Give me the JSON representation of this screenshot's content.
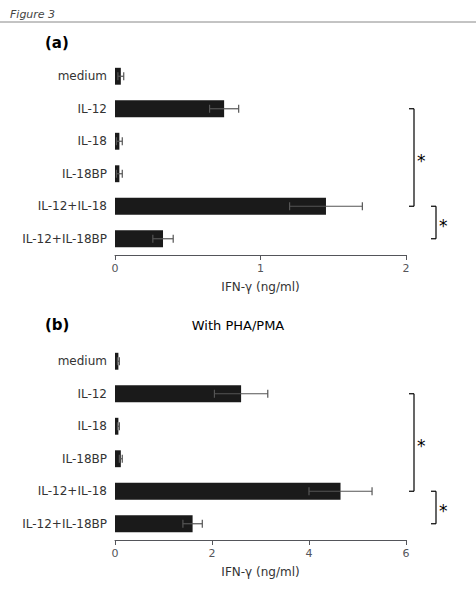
{
  "title": "Figure 3",
  "chart_data": [
    {
      "type": "bar",
      "orientation": "horizontal",
      "title": "(a)",
      "categories": [
        "medium",
        "IL-12",
        "IL-18",
        "IL-18BP",
        "IL-12+IL-18",
        "IL-12+IL-18BP"
      ],
      "values": [
        0.04,
        0.75,
        0.03,
        0.03,
        1.45,
        0.33
      ],
      "errors": [
        0.02,
        0.1,
        0.02,
        0.02,
        0.25,
        0.07
      ],
      "xlim": [
        0,
        2.0
      ],
      "xticks": [
        0,
        1,
        2
      ],
      "xlabel": "IFN-γ (ng/ml)",
      "color": "#1a1a1a",
      "grid": false,
      "annotations": [
        {
          "text": "*",
          "from": "IL-12",
          "to": "IL-12+IL-18"
        },
        {
          "text": "*",
          "from": "IL-12+IL-18",
          "to": "IL-12+IL-18BP"
        }
      ]
    },
    {
      "type": "bar",
      "orientation": "horizontal",
      "title": "(b)",
      "subtitle": "With PHA/PMA",
      "categories": [
        "medium",
        "IL-12",
        "IL-18",
        "IL-18BP",
        "IL-12+IL-18",
        "IL-12+IL-18BP"
      ],
      "values": [
        0.07,
        2.6,
        0.07,
        0.12,
        4.65,
        1.6
      ],
      "errors": [
        0.02,
        0.55,
        0.02,
        0.03,
        0.65,
        0.2
      ],
      "xlim": [
        0,
        6.0
      ],
      "xticks": [
        0,
        2,
        4,
        6
      ],
      "xlabel": "IFN-γ (ng/ml)",
      "color": "#1a1a1a",
      "grid": false,
      "annotations": [
        {
          "text": "*",
          "from": "IL-12",
          "to": "IL-12+IL-18"
        },
        {
          "text": "*",
          "from": "IL-12+IL-18",
          "to": "IL-12+IL-18BP"
        }
      ]
    }
  ]
}
